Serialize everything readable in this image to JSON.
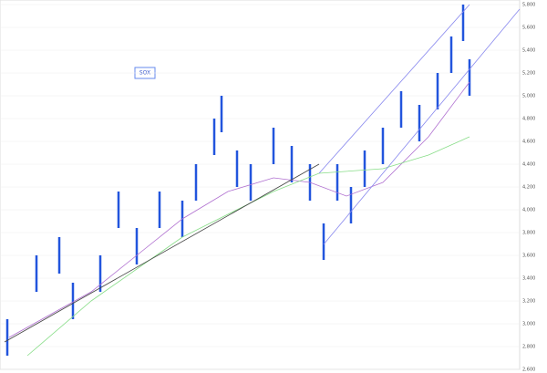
{
  "chart_data": {
    "type": "ohlc",
    "label": "SOX",
    "xlim": [
      0,
      570
    ],
    "ylim": [
      2600,
      5800
    ],
    "yticks": [
      {
        "value": 2600,
        "label": "2,600"
      },
      {
        "value": 2800,
        "label": "2,800"
      },
      {
        "value": 3000,
        "label": "3,000"
      },
      {
        "value": 3200,
        "label": "3,200"
      },
      {
        "value": 3400,
        "label": "3,400"
      },
      {
        "value": 3600,
        "label": "3,600"
      },
      {
        "value": 3800,
        "label": "3,800"
      },
      {
        "value": 4000,
        "label": "4,000"
      },
      {
        "value": 4200,
        "label": "4,200"
      },
      {
        "value": 4400,
        "label": "4,400"
      },
      {
        "value": 4600,
        "label": "4,600"
      },
      {
        "value": 4800,
        "label": "4,800"
      },
      {
        "value": 5000,
        "label": "5,000"
      },
      {
        "value": 5200,
        "label": "5,200"
      },
      {
        "value": 5400,
        "label": "5,400"
      },
      {
        "value": 5600,
        "label": "5,600"
      },
      {
        "value": 5800,
        "label": "5,800"
      }
    ],
    "grid": true,
    "bar_color": "#2255dd",
    "x": [
      8,
      40,
      65,
      80,
      110,
      130,
      150,
      175,
      200,
      215,
      235,
      243,
      260,
      275,
      300,
      320,
      340,
      355,
      370,
      385,
      400,
      420,
      440,
      460,
      480,
      495,
      508,
      515
    ],
    "high": [
      3040,
      3600,
      3760,
      3360,
      3600,
      4160,
      3840,
      4160,
      4080,
      4400,
      4800,
      5000,
      4520,
      4400,
      4720,
      4560,
      4400,
      3880,
      4400,
      4200,
      4520,
      4720,
      5040,
      4920,
      5200,
      5520,
      5800,
      5320
    ],
    "low": [
      2720,
      3280,
      3440,
      3040,
      3280,
      3840,
      3520,
      3840,
      3760,
      4080,
      4480,
      4680,
      4200,
      4080,
      4400,
      4240,
      4080,
      3560,
      4080,
      3880,
      4200,
      4400,
      4720,
      4600,
      4880,
      5200,
      5480,
      5000
    ],
    "overlays": [
      {
        "color": "#b070d0",
        "x": [
          10,
          100,
          150,
          200,
          250,
          300,
          340,
          380,
          420,
          470,
          515
        ],
        "values": [
          2880,
          3280,
          3600,
          3920,
          4160,
          4280,
          4240,
          4120,
          4240,
          4640,
          5120
        ]
      },
      {
        "color": "#88dd88",
        "x": [
          30,
          100,
          200,
          300,
          350,
          420,
          470,
          515
        ],
        "values": [
          2720,
          3200,
          3760,
          4160,
          4320,
          4360,
          4480,
          4640
        ]
      },
      {
        "color": "#444444",
        "x": [
          5,
          350
        ],
        "values": [
          2840,
          4400
        ]
      },
      {
        "color": "#8888ee",
        "x": [
          355,
          570
        ],
        "values": [
          3696,
          5760
        ]
      },
      {
        "color": "#8888ee",
        "x": [
          350,
          515
        ],
        "values": [
          4320,
          5800
        ]
      }
    ]
  }
}
